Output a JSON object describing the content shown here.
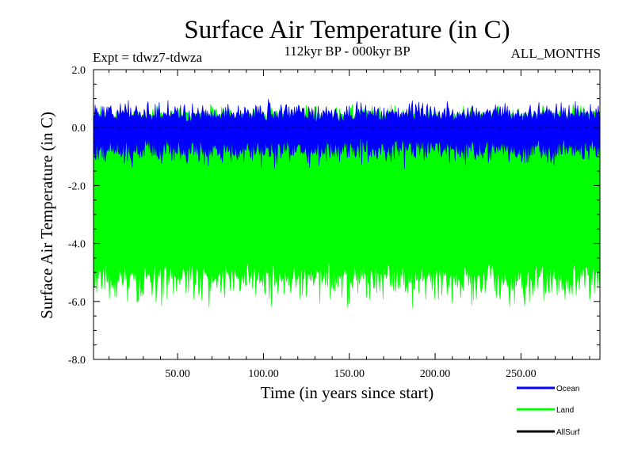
{
  "chart_data": {
    "type": "area",
    "title": "Surface Air Temperature (in C)",
    "subtitle_left": "Expt = tdwz7-tdwza",
    "subtitle_center": "112kyr BP - 000kyr BP",
    "subtitle_right": "ALL_MONTHS",
    "xlabel": "Time (in years since start)",
    "ylabel": "Surface Air Temperature (in C)",
    "xlim": [
      1,
      296
    ],
    "ylim": [
      -8.0,
      2.0
    ],
    "x_tick_labels": [
      "50.00",
      "100.00",
      "150.00",
      "200.00",
      "250.00"
    ],
    "x_ticks": [
      50,
      100,
      150,
      200,
      250
    ],
    "y_tick_labels": [
      "2.0",
      "0.0",
      "-2.0",
      "-4.0",
      "-6.0",
      "-8.0"
    ],
    "y_ticks": [
      2.0,
      0.0,
      -2.0,
      -4.0,
      -6.0,
      -8.0
    ],
    "zero_line": "dashed",
    "legend_placement": "bottom-right",
    "series": [
      {
        "name": "Land",
        "color": "#00ff00",
        "envelope_upper_approx": 0.4,
        "envelope_upper_peak": 0.75,
        "envelope_lower_approx": -5.0,
        "envelope_lower_min": -6.1
      },
      {
        "name": "Ocean",
        "color": "#0000ff",
        "envelope_upper_approx": 0.45,
        "envelope_upper_peak": 0.9,
        "envelope_lower_approx": -0.7,
        "envelope_lower_min": -1.2
      },
      {
        "name": "AllSurf",
        "color": "#000000"
      }
    ]
  }
}
